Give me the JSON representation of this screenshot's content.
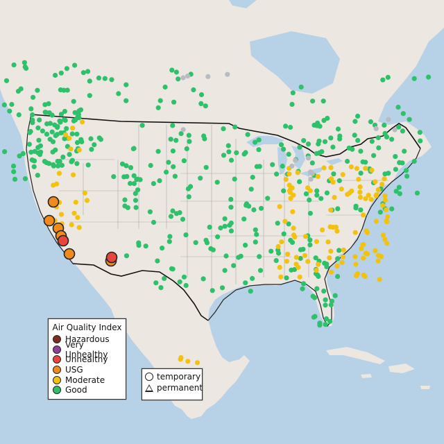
{
  "colors": {
    "hazardous": "#7e2b22",
    "very_unhealthy": "#8f3f97",
    "unhealthy": "#e8453c",
    "usg": "#f08a1c",
    "moderate": "#f3c211",
    "good": "#2ec16b",
    "unknown": "#b8bcc0",
    "water": "#b7d1e6",
    "land": "#ede7e2"
  },
  "aqi_legend": {
    "title": "Air Quality Index",
    "items": [
      {
        "label": "Hazardous",
        "color": "#7e2b22"
      },
      {
        "label": "Very Unhealthy",
        "color": "#8f3f97"
      },
      {
        "label": "Unhealthy",
        "color": "#e8453c"
      },
      {
        "label": "USG",
        "color": "#f08a1c"
      },
      {
        "label": "Moderate",
        "color": "#f3c211"
      },
      {
        "label": "Good",
        "color": "#2ec16b"
      }
    ]
  },
  "type_legend": {
    "temporary_label": "temporary",
    "permanent_label": "permanent"
  }
}
